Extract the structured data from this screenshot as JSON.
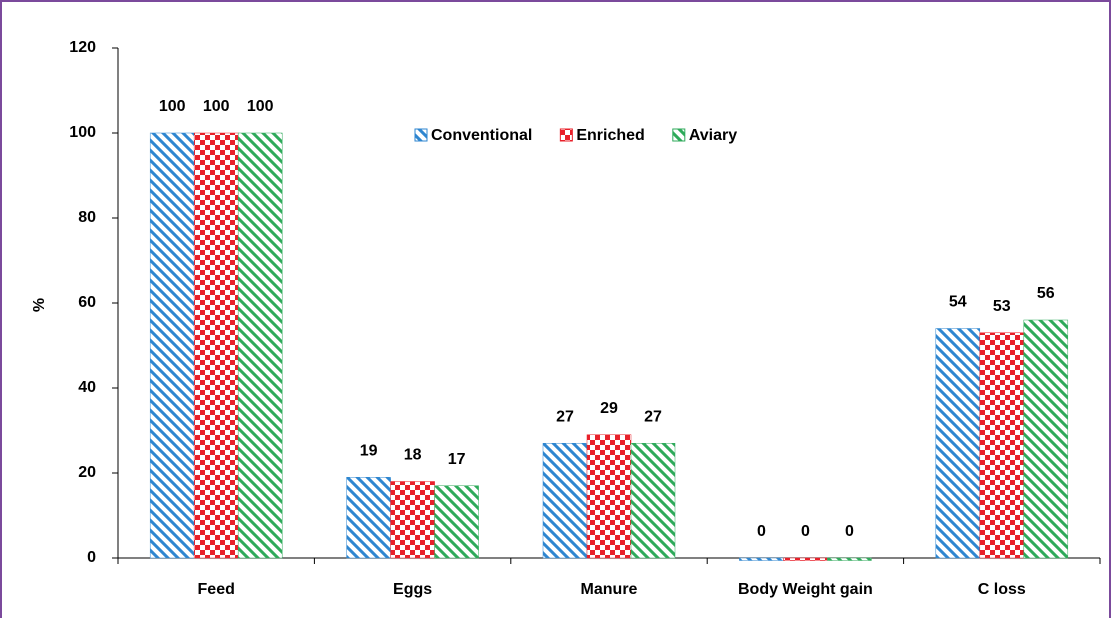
{
  "chart_data": {
    "type": "bar",
    "y_label": "%",
    "categories": [
      "Feed",
      "Eggs",
      "Manure",
      "Body Weight gain",
      "C loss"
    ],
    "series": [
      {
        "name": "Conventional",
        "color": "#2e86d0",
        "pattern": "diagonal",
        "values": [
          100,
          19,
          27,
          0,
          54
        ]
      },
      {
        "name": "Enriched",
        "color": "#e8202a",
        "pattern": "checker",
        "values": [
          100,
          18,
          29,
          0,
          53
        ]
      },
      {
        "name": "Aviary",
        "color": "#2eaa5a",
        "pattern": "diagonal",
        "values": [
          100,
          17,
          27,
          0,
          56
        ]
      }
    ],
    "ylim": [
      0,
      120
    ],
    "yticks": [
      0,
      20,
      40,
      60,
      80,
      100,
      120
    ],
    "grid": false
  }
}
